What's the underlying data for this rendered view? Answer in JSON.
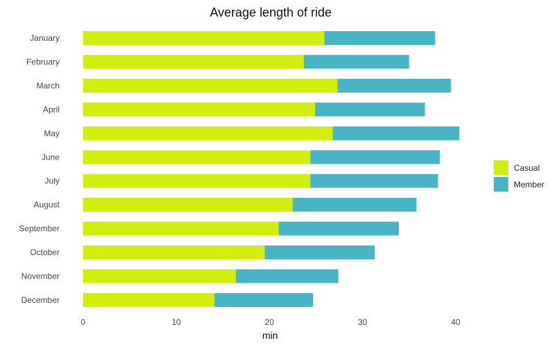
{
  "chart_data": {
    "type": "bar",
    "orientation": "horizontal",
    "stacked": true,
    "title": "Average length of ride",
    "xlabel": "min",
    "ylabel": "",
    "xlim": [
      0,
      44
    ],
    "xticks": [
      0,
      10,
      20,
      30,
      40
    ],
    "grid": false,
    "legend_position": "right",
    "categories": [
      "January",
      "February",
      "March",
      "April",
      "May",
      "June",
      "July",
      "August",
      "September",
      "October",
      "November",
      "December"
    ],
    "series": [
      {
        "name": "Casual",
        "color": "#d2ee0f",
        "values": [
          25.9,
          23.7,
          27.3,
          24.9,
          26.8,
          24.4,
          24.4,
          22.5,
          21.0,
          19.5,
          16.4,
          14.1
        ]
      },
      {
        "name": "Member",
        "color": "#49b5c4",
        "values": [
          11.9,
          11.3,
          12.2,
          11.8,
          13.6,
          13.9,
          13.7,
          13.3,
          12.9,
          11.8,
          11.0,
          10.6
        ]
      }
    ]
  }
}
